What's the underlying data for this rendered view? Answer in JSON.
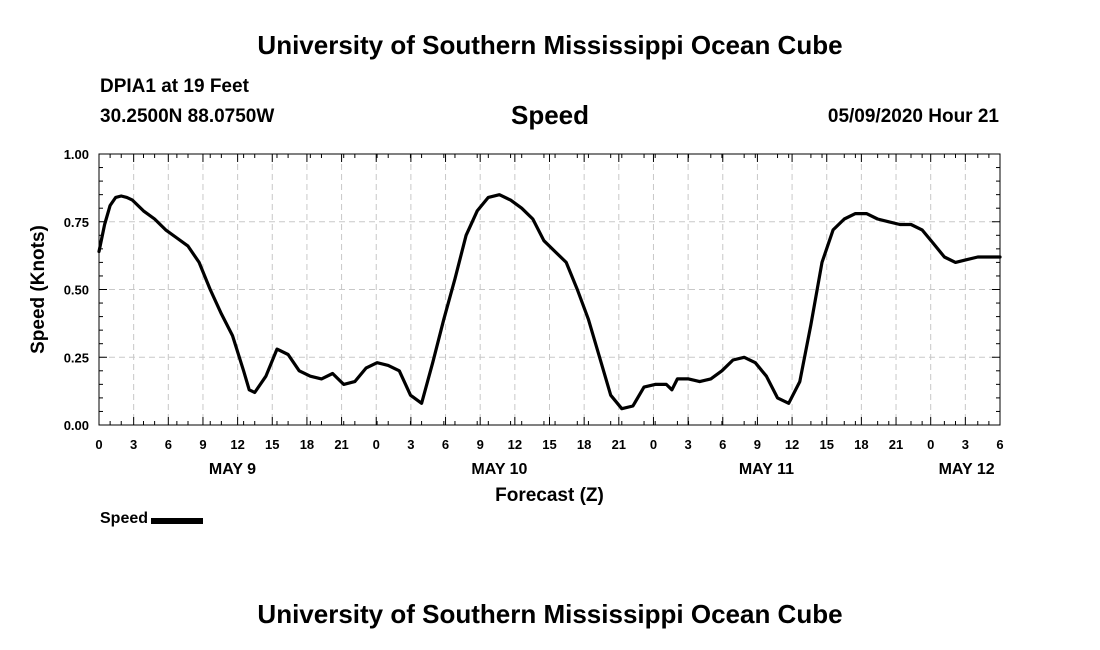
{
  "header": {
    "title": "University of Southern Mississippi Ocean Cube",
    "station": "DPIA1 at 19 Feet",
    "coordinates": "30.2500N 88.0750W",
    "run_time": "05/09/2020 Hour 21"
  },
  "footer": {
    "title": "University of Southern Mississippi Ocean Cube"
  },
  "chart_data": {
    "type": "line",
    "title": "Speed",
    "xlabel": "Forecast (Z)",
    "ylabel": "Speed (Knots)",
    "xlim": [
      0,
      81
    ],
    "ylim": [
      0,
      1
    ],
    "y_ticks": [
      "0.00",
      "0.25",
      "0.50",
      "0.75",
      "1.00"
    ],
    "x_ticks": [
      "0",
      "3",
      "6",
      "9",
      "12",
      "15",
      "18",
      "21",
      "0",
      "3",
      "6",
      "9",
      "12",
      "15",
      "18",
      "21",
      "0",
      "3",
      "6",
      "9",
      "12",
      "15",
      "18",
      "21",
      "0",
      "3",
      "6"
    ],
    "day_labels": [
      {
        "label": "MAY 9",
        "at": 12
      },
      {
        "label": "MAY 10",
        "at": 36
      },
      {
        "label": "MAY 11",
        "at": 60
      },
      {
        "label": "MAY 12",
        "at": 78
      }
    ],
    "grid": true,
    "legend": {
      "position": "bottom-left",
      "entries": [
        "Speed"
      ]
    },
    "series": [
      {
        "name": "Speed",
        "color": "#000000",
        "x": [
          0,
          0.5,
          1,
          1.5,
          2,
          2.5,
          3,
          4,
          5,
          6,
          7,
          8,
          9,
          10,
          11,
          12,
          13,
          13.5,
          14,
          15,
          16,
          17,
          18,
          19,
          20,
          21,
          22,
          23,
          24,
          25,
          26,
          27,
          28,
          29,
          30,
          31,
          32,
          33,
          34,
          35,
          36,
          37,
          38,
          39,
          40,
          41,
          42,
          43,
          44,
          45,
          46,
          47,
          48,
          49,
          50,
          51,
          51.5,
          52,
          53,
          54,
          55,
          56,
          57,
          58,
          59,
          60,
          61,
          62,
          63,
          64,
          65,
          66,
          67,
          68,
          69,
          70,
          71,
          72,
          73,
          74,
          75,
          76,
          77,
          78,
          79,
          80,
          81
        ],
        "y": [
          0.64,
          0.74,
          0.81,
          0.84,
          0.845,
          0.84,
          0.83,
          0.79,
          0.76,
          0.72,
          0.69,
          0.66,
          0.6,
          0.5,
          0.41,
          0.33,
          0.2,
          0.13,
          0.12,
          0.18,
          0.28,
          0.26,
          0.2,
          0.18,
          0.17,
          0.19,
          0.15,
          0.16,
          0.21,
          0.23,
          0.22,
          0.2,
          0.11,
          0.08,
          0.23,
          0.39,
          0.54,
          0.7,
          0.79,
          0.84,
          0.85,
          0.83,
          0.8,
          0.76,
          0.68,
          0.64,
          0.6,
          0.5,
          0.39,
          0.25,
          0.11,
          0.06,
          0.07,
          0.14,
          0.15,
          0.15,
          0.13,
          0.17,
          0.17,
          0.16,
          0.17,
          0.2,
          0.24,
          0.25,
          0.23,
          0.18,
          0.1,
          0.08,
          0.16,
          0.37,
          0.6,
          0.72,
          0.76,
          0.78,
          0.78,
          0.76,
          0.75,
          0.74,
          0.74,
          0.72,
          0.67,
          0.62,
          0.6,
          0.61,
          0.62,
          0.62,
          0.62
        ]
      }
    ]
  }
}
